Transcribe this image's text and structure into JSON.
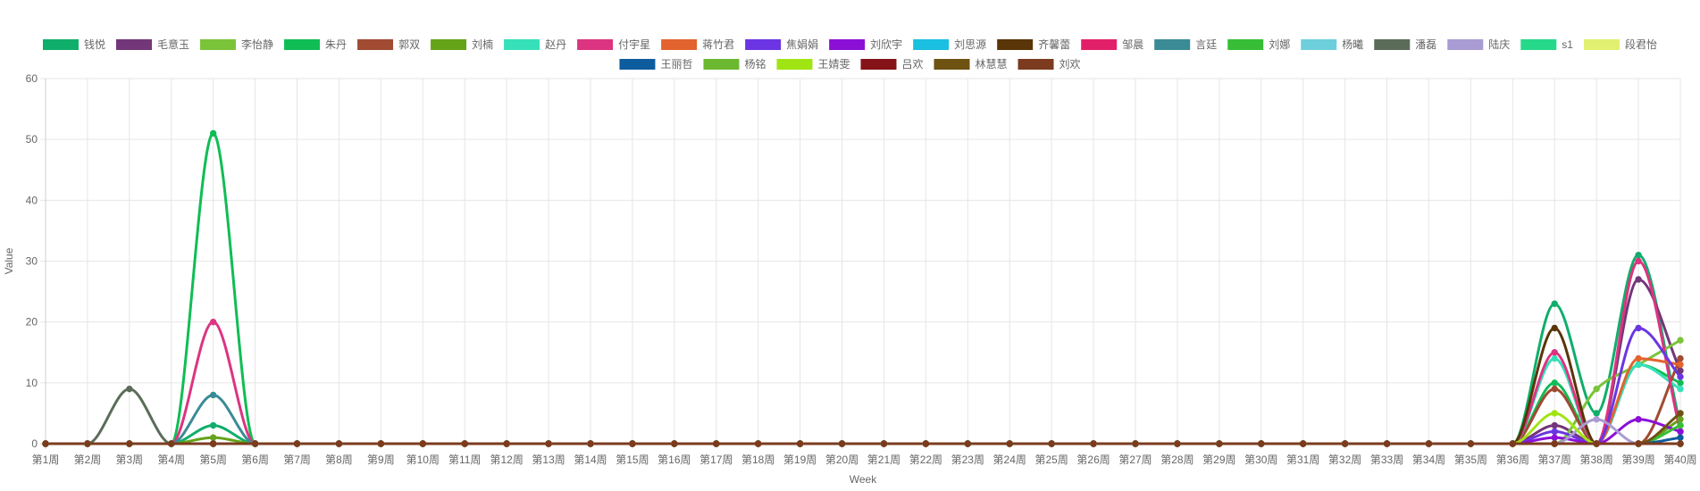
{
  "chart_data": {
    "type": "line",
    "xlabel": "Week",
    "ylabel": "Value",
    "ylim": [
      0,
      60
    ],
    "yticks": [
      0,
      10,
      20,
      30,
      40,
      50,
      60
    ],
    "grid": true,
    "legend_position": "top",
    "categories": [
      "第1周",
      "第2周",
      "第3周",
      "第4周",
      "第5周",
      "第6周",
      "第7周",
      "第8周",
      "第9周",
      "第10周",
      "第11周",
      "第12周",
      "第13周",
      "第14周",
      "第15周",
      "第16周",
      "第17周",
      "第18周",
      "第19周",
      "第20周",
      "第21周",
      "第22周",
      "第23周",
      "第24周",
      "第25周",
      "第26周",
      "第27周",
      "第28周",
      "第29周",
      "第30周",
      "第31周",
      "第32周",
      "第33周",
      "第34周",
      "第35周",
      "第36周",
      "第37周",
      "第38周",
      "第39周",
      "第40周"
    ],
    "series": [
      {
        "name": "钱悦",
        "color": "#0fae6b",
        "values": [
          0,
          0,
          0,
          0,
          3,
          0,
          0,
          0,
          0,
          0,
          0,
          0,
          0,
          0,
          0,
          0,
          0,
          0,
          0,
          0,
          0,
          0,
          0,
          0,
          0,
          0,
          0,
          0,
          0,
          0,
          0,
          0,
          0,
          0,
          0,
          0,
          23,
          5,
          31,
          3
        ]
      },
      {
        "name": "毛意玉",
        "color": "#733678",
        "values": [
          0,
          0,
          0,
          0,
          0,
          0,
          0,
          0,
          0,
          0,
          0,
          0,
          0,
          0,
          0,
          0,
          0,
          0,
          0,
          0,
          0,
          0,
          0,
          0,
          0,
          0,
          0,
          0,
          0,
          0,
          0,
          0,
          0,
          0,
          0,
          0,
          3,
          0,
          27,
          12
        ]
      },
      {
        "name": "李怡静",
        "color": "#7ac43a",
        "values": [
          0,
          0,
          0,
          0,
          0,
          0,
          0,
          0,
          0,
          0,
          0,
          0,
          0,
          0,
          0,
          0,
          0,
          0,
          0,
          0,
          0,
          0,
          0,
          0,
          0,
          0,
          0,
          0,
          0,
          0,
          0,
          0,
          0,
          0,
          0,
          0,
          0,
          9,
          13,
          17
        ]
      },
      {
        "name": "朱丹",
        "color": "#10bd55",
        "values": [
          0,
          0,
          0,
          0,
          51,
          0,
          0,
          0,
          0,
          0,
          0,
          0,
          0,
          0,
          0,
          0,
          0,
          0,
          0,
          0,
          0,
          0,
          0,
          0,
          0,
          0,
          0,
          0,
          0,
          0,
          0,
          0,
          0,
          0,
          0,
          0,
          10,
          0,
          13,
          10
        ]
      },
      {
        "name": "郭双",
        "color": "#a04b32",
        "values": [
          0,
          0,
          0,
          0,
          0,
          0,
          0,
          0,
          0,
          0,
          0,
          0,
          0,
          0,
          0,
          0,
          0,
          0,
          0,
          0,
          0,
          0,
          0,
          0,
          0,
          0,
          0,
          0,
          0,
          0,
          0,
          0,
          0,
          0,
          0,
          0,
          9,
          0,
          0,
          14
        ]
      },
      {
        "name": "刘楠",
        "color": "#64a31a",
        "values": [
          0,
          0,
          0,
          0,
          1,
          0,
          0,
          0,
          0,
          0,
          0,
          0,
          0,
          0,
          0,
          0,
          0,
          0,
          0,
          0,
          0,
          0,
          0,
          0,
          0,
          0,
          0,
          0,
          0,
          0,
          0,
          0,
          0,
          0,
          0,
          0,
          0,
          0,
          0,
          4
        ]
      },
      {
        "name": "赵丹",
        "color": "#36e0b8",
        "values": [
          0,
          0,
          0,
          0,
          0,
          0,
          0,
          0,
          0,
          0,
          0,
          0,
          0,
          0,
          0,
          0,
          0,
          0,
          0,
          0,
          0,
          0,
          0,
          0,
          0,
          0,
          0,
          0,
          0,
          0,
          0,
          0,
          0,
          0,
          0,
          0,
          14,
          0,
          13,
          9
        ]
      },
      {
        "name": "付宇星",
        "color": "#dc3481",
        "values": [
          0,
          0,
          0,
          0,
          20,
          0,
          0,
          0,
          0,
          0,
          0,
          0,
          0,
          0,
          0,
          0,
          0,
          0,
          0,
          0,
          0,
          0,
          0,
          0,
          0,
          0,
          0,
          0,
          0,
          0,
          0,
          0,
          0,
          0,
          0,
          0,
          15,
          0,
          30,
          2
        ]
      },
      {
        "name": "蒋竹君",
        "color": "#e2632e",
        "values": [
          0,
          0,
          0,
          0,
          0,
          0,
          0,
          0,
          0,
          0,
          0,
          0,
          0,
          0,
          0,
          0,
          0,
          0,
          0,
          0,
          0,
          0,
          0,
          0,
          0,
          0,
          0,
          0,
          0,
          0,
          0,
          0,
          0,
          0,
          0,
          0,
          0,
          0,
          14,
          13
        ]
      },
      {
        "name": "焦娟娟",
        "color": "#6b35e3",
        "values": [
          0,
          0,
          0,
          0,
          0,
          0,
          0,
          0,
          0,
          0,
          0,
          0,
          0,
          0,
          0,
          0,
          0,
          0,
          0,
          0,
          0,
          0,
          0,
          0,
          0,
          0,
          0,
          0,
          0,
          0,
          0,
          0,
          0,
          0,
          0,
          0,
          2,
          0,
          19,
          11
        ]
      },
      {
        "name": "刘欣宇",
        "color": "#8b10d6",
        "values": [
          0,
          0,
          0,
          0,
          0,
          0,
          0,
          0,
          0,
          0,
          0,
          0,
          0,
          0,
          0,
          0,
          0,
          0,
          0,
          0,
          0,
          0,
          0,
          0,
          0,
          0,
          0,
          0,
          0,
          0,
          0,
          0,
          0,
          0,
          0,
          0,
          1,
          0,
          4,
          2
        ]
      },
      {
        "name": "刘思源",
        "color": "#1bbfe0",
        "values": [
          0,
          0,
          0,
          0,
          0,
          0,
          0,
          0,
          0,
          0,
          0,
          0,
          0,
          0,
          0,
          0,
          0,
          0,
          0,
          0,
          0,
          0,
          0,
          0,
          0,
          0,
          0,
          0,
          0,
          0,
          0,
          0,
          0,
          0,
          0,
          0,
          0,
          0,
          0,
          0
        ]
      },
      {
        "name": "齐馨蕾",
        "color": "#5a3508",
        "values": [
          0,
          0,
          0,
          0,
          0,
          0,
          0,
          0,
          0,
          0,
          0,
          0,
          0,
          0,
          0,
          0,
          0,
          0,
          0,
          0,
          0,
          0,
          0,
          0,
          0,
          0,
          0,
          0,
          0,
          0,
          0,
          0,
          0,
          0,
          0,
          0,
          19,
          0,
          0,
          0
        ]
      },
      {
        "name": "邹晨",
        "color": "#e2206a",
        "values": [
          0,
          0,
          0,
          0,
          0,
          0,
          0,
          0,
          0,
          0,
          0,
          0,
          0,
          0,
          0,
          0,
          0,
          0,
          0,
          0,
          0,
          0,
          0,
          0,
          0,
          0,
          0,
          0,
          0,
          0,
          0,
          0,
          0,
          0,
          0,
          0,
          0,
          0,
          0,
          0
        ]
      },
      {
        "name": "言廷",
        "color": "#3a8b96",
        "values": [
          0,
          0,
          0,
          0,
          8,
          0,
          0,
          0,
          0,
          0,
          0,
          0,
          0,
          0,
          0,
          0,
          0,
          0,
          0,
          0,
          0,
          0,
          0,
          0,
          0,
          0,
          0,
          0,
          0,
          0,
          0,
          0,
          0,
          0,
          0,
          0,
          0,
          0,
          0,
          0
        ]
      },
      {
        "name": "刘娜",
        "color": "#37be36",
        "values": [
          0,
          0,
          0,
          0,
          0,
          0,
          0,
          0,
          0,
          0,
          0,
          0,
          0,
          0,
          0,
          0,
          0,
          0,
          0,
          0,
          0,
          0,
          0,
          0,
          0,
          0,
          0,
          0,
          0,
          0,
          0,
          0,
          0,
          0,
          0,
          0,
          0,
          0,
          0,
          3
        ]
      },
      {
        "name": "杨曦",
        "color": "#6dcfdb",
        "values": [
          0,
          0,
          0,
          0,
          0,
          0,
          0,
          0,
          0,
          0,
          0,
          0,
          0,
          0,
          0,
          0,
          0,
          0,
          0,
          0,
          0,
          0,
          0,
          0,
          0,
          0,
          0,
          0,
          0,
          0,
          0,
          0,
          0,
          0,
          0,
          0,
          0,
          0,
          0,
          0
        ]
      },
      {
        "name": "潘磊",
        "color": "#5b6d59",
        "values": [
          0,
          0,
          9,
          0,
          0,
          0,
          0,
          0,
          0,
          0,
          0,
          0,
          0,
          0,
          0,
          0,
          0,
          0,
          0,
          0,
          0,
          0,
          0,
          0,
          0,
          0,
          0,
          0,
          0,
          0,
          0,
          0,
          0,
          0,
          0,
          0,
          0,
          0,
          0,
          0
        ]
      },
      {
        "name": "陆庆",
        "color": "#a99bd3",
        "values": [
          0,
          0,
          0,
          0,
          0,
          0,
          0,
          0,
          0,
          0,
          0,
          0,
          0,
          0,
          0,
          0,
          0,
          0,
          0,
          0,
          0,
          0,
          0,
          0,
          0,
          0,
          0,
          0,
          0,
          0,
          0,
          0,
          0,
          0,
          0,
          0,
          0,
          4,
          0,
          0
        ]
      },
      {
        "name": "s1",
        "color": "#26d98a",
        "values": [
          0,
          0,
          0,
          0,
          0,
          0,
          0,
          0,
          0,
          0,
          0,
          0,
          0,
          0,
          0,
          0,
          0,
          0,
          0,
          0,
          0,
          0,
          0,
          0,
          0,
          0,
          0,
          0,
          0,
          0,
          0,
          0,
          0,
          0,
          0,
          0,
          0,
          0,
          0,
          0
        ]
      },
      {
        "name": "段君怡",
        "color": "#e1f070",
        "values": [
          0,
          0,
          0,
          0,
          0,
          0,
          0,
          0,
          0,
          0,
          0,
          0,
          0,
          0,
          0,
          0,
          0,
          0,
          0,
          0,
          0,
          0,
          0,
          0,
          0,
          0,
          0,
          0,
          0,
          0,
          0,
          0,
          0,
          0,
          0,
          0,
          0,
          0,
          0,
          0
        ]
      },
      {
        "name": "王丽哲",
        "color": "#0d5c9e",
        "values": [
          0,
          0,
          0,
          0,
          0,
          0,
          0,
          0,
          0,
          0,
          0,
          0,
          0,
          0,
          0,
          0,
          0,
          0,
          0,
          0,
          0,
          0,
          0,
          0,
          0,
          0,
          0,
          0,
          0,
          0,
          0,
          0,
          0,
          0,
          0,
          0,
          0,
          0,
          0,
          1
        ]
      },
      {
        "name": "杨铭",
        "color": "#6cb830",
        "values": [
          0,
          0,
          0,
          0,
          0,
          0,
          0,
          0,
          0,
          0,
          0,
          0,
          0,
          0,
          0,
          0,
          0,
          0,
          0,
          0,
          0,
          0,
          0,
          0,
          0,
          0,
          0,
          0,
          0,
          0,
          0,
          0,
          0,
          0,
          0,
          0,
          0,
          0,
          0,
          0
        ]
      },
      {
        "name": "王婧雯",
        "color": "#a1e414",
        "values": [
          0,
          0,
          0,
          0,
          0,
          0,
          0,
          0,
          0,
          0,
          0,
          0,
          0,
          0,
          0,
          0,
          0,
          0,
          0,
          0,
          0,
          0,
          0,
          0,
          0,
          0,
          0,
          0,
          0,
          0,
          0,
          0,
          0,
          0,
          0,
          0,
          5,
          0,
          0,
          0
        ]
      },
      {
        "name": "吕欢",
        "color": "#851317",
        "values": [
          0,
          0,
          0,
          0,
          0,
          0,
          0,
          0,
          0,
          0,
          0,
          0,
          0,
          0,
          0,
          0,
          0,
          0,
          0,
          0,
          0,
          0,
          0,
          0,
          0,
          0,
          0,
          0,
          0,
          0,
          0,
          0,
          0,
          0,
          0,
          0,
          0,
          0,
          0,
          0
        ]
      },
      {
        "name": "林慧慧",
        "color": "#6e5212",
        "values": [
          0,
          0,
          0,
          0,
          0,
          0,
          0,
          0,
          0,
          0,
          0,
          0,
          0,
          0,
          0,
          0,
          0,
          0,
          0,
          0,
          0,
          0,
          0,
          0,
          0,
          0,
          0,
          0,
          0,
          0,
          0,
          0,
          0,
          0,
          0,
          0,
          0,
          0,
          0,
          5
        ]
      },
      {
        "name": "刘欢",
        "color": "#7c3b1f",
        "values": [
          0,
          0,
          0,
          0,
          0,
          0,
          0,
          0,
          0,
          0,
          0,
          0,
          0,
          0,
          0,
          0,
          0,
          0,
          0,
          0,
          0,
          0,
          0,
          0,
          0,
          0,
          0,
          0,
          0,
          0,
          0,
          0,
          0,
          0,
          0,
          0,
          0,
          0,
          0,
          0
        ]
      }
    ]
  }
}
